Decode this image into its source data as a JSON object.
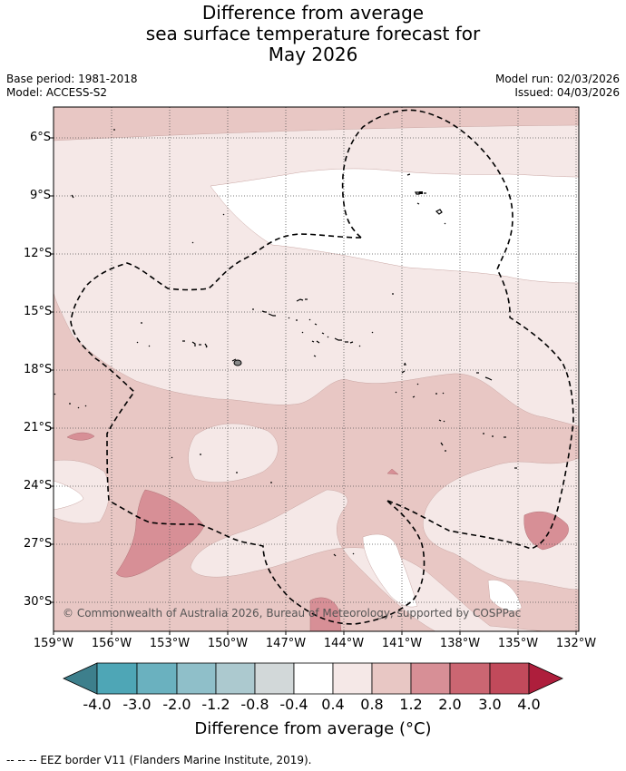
{
  "title": {
    "line1": "Difference from average",
    "line2": "sea surface temperature forecast for",
    "line3": "May 2026"
  },
  "meta_left": {
    "base_period": "Base period: 1981-2018",
    "model": "Model: ACCESS-S2"
  },
  "meta_right": {
    "model_run": "Model run: 02/03/2026",
    "issued": "Issued: 04/03/2026"
  },
  "map": {
    "lat_labels": [
      "6°S",
      "9°S",
      "12°S",
      "15°S",
      "18°S",
      "21°S",
      "24°S",
      "27°S",
      "30°S"
    ],
    "lon_labels": [
      "159°W",
      "156°W",
      "153°W",
      "150°W",
      "147°W",
      "144°W",
      "141°W",
      "138°W",
      "135°W",
      "132°W"
    ],
    "copyright": "© Commonwealth of Australia 2026, Bureau of Meteorology, supported by COSPPac"
  },
  "colorbar": {
    "ticks": [
      "-4.0",
      "-3.0",
      "-2.0",
      "-1.2",
      "-0.8",
      "-0.4",
      "0.4",
      "0.8",
      "1.2",
      "2.0",
      "3.0",
      "4.0"
    ],
    "colors": [
      "#3d7f8c",
      "#4ea6b6",
      "#6ab1bf",
      "#8fbfc9",
      "#acc9cf",
      "#d2d8d9",
      "#ffffff",
      "#f5e8e7",
      "#e8c7c4",
      "#d78f96",
      "#cb6672",
      "#c14a5b",
      "#ae1e3c"
    ],
    "title": "Difference from average (°C)"
  },
  "footer": "--  --  -- EEZ border V11 (Flanders Marine Institute, 2019)."
}
